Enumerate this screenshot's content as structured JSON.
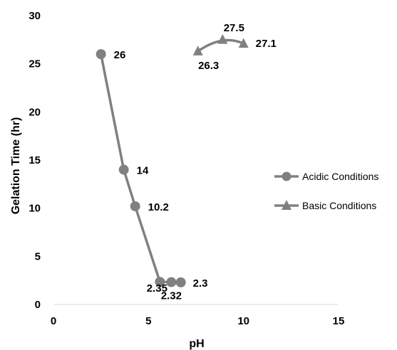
{
  "chart_data": {
    "type": "line",
    "title": "",
    "xlabel": "pH",
    "ylabel": "Gelation Time (hr)",
    "xlim": [
      0,
      15
    ],
    "ylim": [
      0,
      30
    ],
    "x_ticks": [
      0,
      5,
      10,
      15
    ],
    "y_ticks": [
      0,
      5,
      10,
      15,
      20,
      25,
      30
    ],
    "grid": false,
    "legend_position": "right",
    "series": [
      {
        "name": "Acidic Conditions",
        "marker": "circle",
        "color": "#808080",
        "x": [
          2.5,
          3.7,
          4.3,
          5.6,
          6.2,
          6.7
        ],
        "y": [
          26,
          14,
          10.2,
          2.35,
          2.32,
          2.3
        ],
        "labels": [
          "26",
          "14",
          "10.2",
          "2.35",
          "2.32",
          "2.3"
        ]
      },
      {
        "name": "Basic Conditions",
        "marker": "triangle",
        "color": "#808080",
        "x": [
          7.6,
          8.9,
          10.0
        ],
        "y": [
          26.3,
          27.5,
          27.1
        ],
        "labels": [
          "26.3",
          "27.5",
          "27.1"
        ]
      }
    ]
  }
}
